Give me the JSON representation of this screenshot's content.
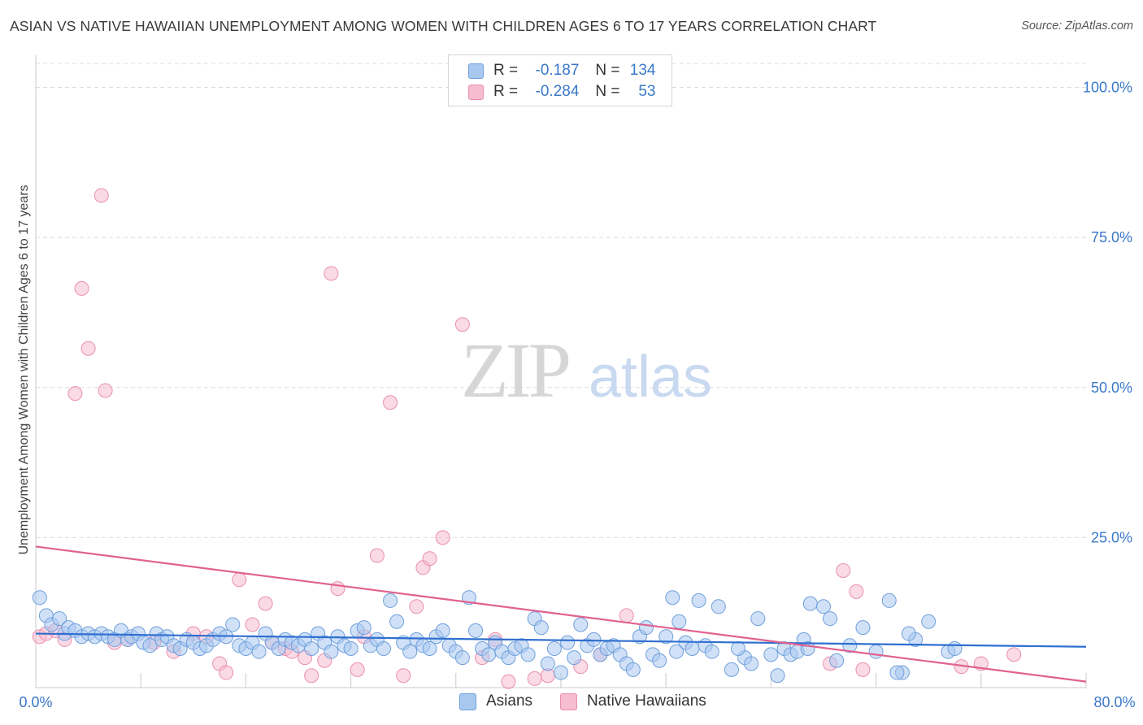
{
  "title": "ASIAN VS NATIVE HAWAIIAN UNEMPLOYMENT AMONG WOMEN WITH CHILDREN AGES 6 TO 17 YEARS CORRELATION CHART",
  "source": "Source: ZipAtlas.com",
  "watermark": {
    "zip": "ZIP",
    "atlas": "atlas"
  },
  "legend": {
    "r_label": "R =",
    "n_label": "N =",
    "series": [
      {
        "name": "Asians",
        "r": "-0.187",
        "n": "134"
      },
      {
        "name": "Native Hawaiians",
        "r": "-0.284",
        "n": "53"
      }
    ]
  },
  "colors": {
    "asian_fill": "#a9c8f0",
    "asian_stroke": "#6f9fdc",
    "asian_line": "#2f6fd0",
    "hawaiian_fill": "#f6bccf",
    "hawaiian_stroke": "#ea8fae",
    "hawaiian_line": "#e0628f",
    "grid": "#dcdcdc",
    "tick_text": "#3a78c9"
  },
  "chart_data": {
    "type": "scatter",
    "title": "ASIAN VS NATIVE HAWAIIAN UNEMPLOYMENT AMONG WOMEN WITH CHILDREN AGES 6 TO 17 YEARS CORRELATION CHART",
    "xlabel": "",
    "ylabel": "Unemployment Among Women with Children Ages 6 to 17 years",
    "xlim": [
      0,
      80
    ],
    "ylim": [
      0,
      104
    ],
    "x_tick_labels": [
      "0.0%",
      "80.0%"
    ],
    "y_ticks": [
      25,
      50,
      75,
      100
    ],
    "y_tick_labels": [
      "25.0%",
      "50.0%",
      "75.0%",
      "100.0%"
    ],
    "grid": true,
    "series": [
      {
        "name": "Asians",
        "trend": {
          "x": [
            0,
            80
          ],
          "y": [
            9.0,
            6.8
          ]
        },
        "points": [
          [
            0.3,
            15.0
          ],
          [
            0.8,
            12.0
          ],
          [
            1.2,
            10.5
          ],
          [
            1.8,
            11.5
          ],
          [
            2.2,
            9.0
          ],
          [
            2.5,
            10.0
          ],
          [
            3.0,
            9.5
          ],
          [
            3.5,
            8.5
          ],
          [
            4.0,
            9.0
          ],
          [
            4.5,
            8.5
          ],
          [
            5.0,
            9.0
          ],
          [
            5.5,
            8.5
          ],
          [
            6.0,
            8.0
          ],
          [
            6.5,
            9.5
          ],
          [
            7.0,
            8.0
          ],
          [
            7.3,
            8.5
          ],
          [
            7.8,
            9.0
          ],
          [
            8.2,
            7.5
          ],
          [
            8.7,
            7.0
          ],
          [
            9.2,
            9.0
          ],
          [
            9.6,
            8.0
          ],
          [
            10.0,
            8.5
          ],
          [
            10.5,
            7.0
          ],
          [
            11.0,
            6.5
          ],
          [
            11.5,
            8.0
          ],
          [
            12.0,
            7.5
          ],
          [
            12.5,
            6.5
          ],
          [
            13.0,
            7.0
          ],
          [
            13.5,
            8.0
          ],
          [
            14.0,
            9.0
          ],
          [
            14.5,
            8.5
          ],
          [
            15.0,
            10.5
          ],
          [
            15.5,
            7.0
          ],
          [
            16.0,
            6.5
          ],
          [
            16.5,
            7.5
          ],
          [
            17.0,
            6.0
          ],
          [
            17.5,
            9.0
          ],
          [
            18.0,
            7.5
          ],
          [
            18.5,
            6.5
          ],
          [
            19.0,
            8.0
          ],
          [
            19.5,
            7.5
          ],
          [
            20.0,
            7.0
          ],
          [
            20.5,
            8.0
          ],
          [
            21.0,
            6.5
          ],
          [
            21.5,
            9.0
          ],
          [
            22.0,
            7.5
          ],
          [
            22.5,
            6.0
          ],
          [
            23.0,
            8.5
          ],
          [
            23.5,
            7.0
          ],
          [
            24.0,
            6.5
          ],
          [
            24.5,
            9.5
          ],
          [
            25.0,
            10.0
          ],
          [
            25.5,
            7.0
          ],
          [
            26.0,
            8.0
          ],
          [
            26.5,
            6.5
          ],
          [
            27.0,
            14.5
          ],
          [
            27.5,
            11.0
          ],
          [
            28.0,
            7.5
          ],
          [
            28.5,
            6.0
          ],
          [
            29.0,
            8.0
          ],
          [
            29.5,
            7.0
          ],
          [
            30.0,
            6.5
          ],
          [
            30.5,
            8.5
          ],
          [
            31.0,
            9.5
          ],
          [
            31.5,
            7.0
          ],
          [
            32.0,
            6.0
          ],
          [
            32.5,
            5.0
          ],
          [
            33.0,
            15.0
          ],
          [
            33.5,
            9.5
          ],
          [
            34.0,
            6.5
          ],
          [
            34.5,
            5.5
          ],
          [
            35.0,
            7.5
          ],
          [
            35.5,
            6.0
          ],
          [
            36.0,
            5.0
          ],
          [
            36.5,
            6.5
          ],
          [
            37.0,
            7.0
          ],
          [
            37.5,
            5.5
          ],
          [
            38.0,
            11.5
          ],
          [
            38.5,
            10.0
          ],
          [
            39.0,
            4.0
          ],
          [
            39.5,
            6.5
          ],
          [
            40.0,
            2.5
          ],
          [
            40.5,
            7.5
          ],
          [
            41.0,
            5.0
          ],
          [
            41.5,
            10.5
          ],
          [
            42.0,
            7.0
          ],
          [
            42.5,
            8.0
          ],
          [
            43.0,
            5.5
          ],
          [
            43.5,
            6.5
          ],
          [
            44.0,
            7.0
          ],
          [
            44.5,
            5.5
          ],
          [
            45.0,
            4.0
          ],
          [
            45.5,
            3.0
          ],
          [
            46.0,
            8.5
          ],
          [
            46.5,
            10.0
          ],
          [
            47.0,
            5.5
          ],
          [
            47.5,
            4.5
          ],
          [
            48.0,
            8.5
          ],
          [
            48.5,
            15.0
          ],
          [
            49.0,
            11.0
          ],
          [
            49.5,
            7.5
          ],
          [
            50.0,
            6.5
          ],
          [
            50.5,
            14.5
          ],
          [
            51.0,
            7.0
          ],
          [
            51.5,
            6.0
          ],
          [
            52.0,
            13.5
          ],
          [
            53.0,
            3.0
          ],
          [
            54.0,
            5.0
          ],
          [
            54.5,
            4.0
          ],
          [
            55.0,
            11.5
          ],
          [
            56.0,
            5.5
          ],
          [
            56.5,
            2.0
          ],
          [
            57.0,
            6.5
          ],
          [
            57.5,
            5.5
          ],
          [
            58.0,
            6.0
          ],
          [
            58.5,
            8.0
          ],
          [
            59.0,
            14.0
          ],
          [
            60.0,
            13.5
          ],
          [
            60.5,
            11.5
          ],
          [
            61.0,
            4.5
          ],
          [
            62.0,
            7.0
          ],
          [
            63.0,
            10.0
          ],
          [
            64.0,
            6.0
          ],
          [
            65.0,
            14.5
          ],
          [
            66.0,
            2.5
          ],
          [
            67.0,
            8.0
          ],
          [
            68.0,
            11.0
          ],
          [
            69.5,
            6.0
          ],
          [
            70.0,
            6.5
          ],
          [
            66.5,
            9.0
          ],
          [
            48.8,
            6.0
          ],
          [
            58.8,
            6.5
          ],
          [
            65.6,
            2.5
          ],
          [
            53.5,
            6.5
          ]
        ]
      },
      {
        "name": "Native Hawaiians",
        "trend": {
          "x": [
            0,
            80
          ],
          "y": [
            23.5,
            1.0
          ]
        },
        "points": [
          [
            0.3,
            8.5
          ],
          [
            0.8,
            9.0
          ],
          [
            1.5,
            9.5
          ],
          [
            2.2,
            8.0
          ],
          [
            3.0,
            49.0
          ],
          [
            3.5,
            66.5
          ],
          [
            4.0,
            56.5
          ],
          [
            5.0,
            82.0
          ],
          [
            5.3,
            49.5
          ],
          [
            6.0,
            7.5
          ],
          [
            7.0,
            8.0
          ],
          [
            9.0,
            7.5
          ],
          [
            10.5,
            6.0
          ],
          [
            12.0,
            9.0
          ],
          [
            13.0,
            8.5
          ],
          [
            14.0,
            4.0
          ],
          [
            14.5,
            2.5
          ],
          [
            15.5,
            18.0
          ],
          [
            16.5,
            10.5
          ],
          [
            17.5,
            14.0
          ],
          [
            18.0,
            7.5
          ],
          [
            19.0,
            6.5
          ],
          [
            19.5,
            6.0
          ],
          [
            20.5,
            5.0
          ],
          [
            21.0,
            2.0
          ],
          [
            22.0,
            4.5
          ],
          [
            22.5,
            69.0
          ],
          [
            23.0,
            16.5
          ],
          [
            24.5,
            3.0
          ],
          [
            25.0,
            8.5
          ],
          [
            26.0,
            22.0
          ],
          [
            27.0,
            47.5
          ],
          [
            28.0,
            2.0
          ],
          [
            29.0,
            13.5
          ],
          [
            29.5,
            20.0
          ],
          [
            30.0,
            21.5
          ],
          [
            31.0,
            25.0
          ],
          [
            32.5,
            60.5
          ],
          [
            34.0,
            5.0
          ],
          [
            35.0,
            8.0
          ],
          [
            36.0,
            1.0
          ],
          [
            38.0,
            1.5
          ],
          [
            39.0,
            2.0
          ],
          [
            41.5,
            3.5
          ],
          [
            43.0,
            5.5
          ],
          [
            45.0,
            12.0
          ],
          [
            60.5,
            4.0
          ],
          [
            61.5,
            19.5
          ],
          [
            62.5,
            16.0
          ],
          [
            63.0,
            3.0
          ],
          [
            70.5,
            3.5
          ],
          [
            72.0,
            4.0
          ],
          [
            74.5,
            5.5
          ]
        ]
      }
    ]
  }
}
